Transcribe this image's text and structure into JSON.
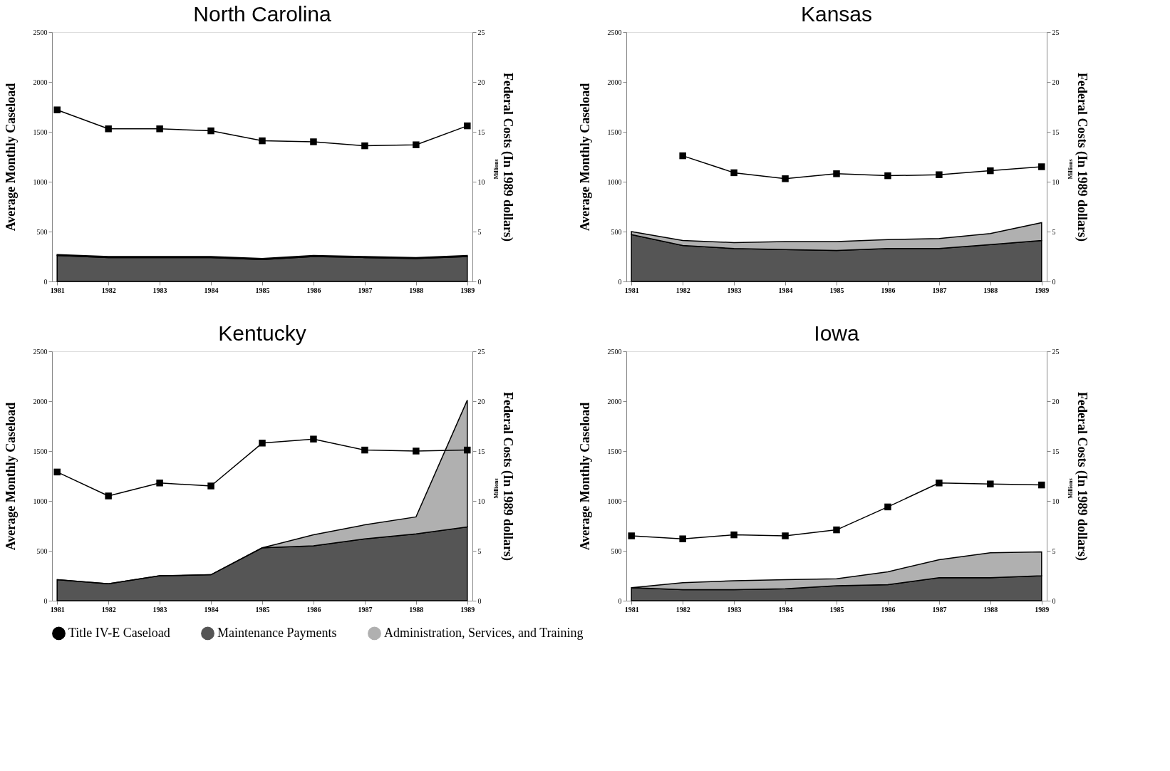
{
  "chart_data": [
    {
      "type": "line",
      "title": "North Carolina",
      "ylabel": "Average Monthly Caseload",
      "y2label": "Federal Costs (In 1989 dollars)",
      "annotations": [
        "Millions"
      ],
      "categories": [
        "1981",
        "1982",
        "1983",
        "1984",
        "1985",
        "1986",
        "1987",
        "1988",
        "1989"
      ],
      "stacked": true,
      "legend": "bottom",
      "ylim": [
        0,
        2500
      ],
      "yticks": [
        0,
        500,
        1000,
        1500,
        2000,
        2500
      ],
      "y2lim": [
        0,
        25
      ],
      "y2ticks": [
        0,
        5,
        10,
        15,
        20,
        25
      ],
      "series": [
        {
          "name": "Title IV-E Caseload",
          "marker": "square",
          "color": "#000000",
          "values": [
            1720,
            1530,
            1530,
            1510,
            1410,
            1400,
            1360,
            1370,
            1560
          ]
        },
        {
          "name": "Maintenance Payments",
          "type": "area",
          "axis": "y2",
          "color": "#555555",
          "values": [
            2.6,
            2.4,
            2.4,
            2.4,
            2.2,
            2.5,
            2.4,
            2.3,
            2.5
          ]
        },
        {
          "name": "Administration, Services, and Training",
          "type": "area",
          "axis": "y2",
          "color": "#b0b0b0",
          "values": [
            0.1,
            0.1,
            0.1,
            0.1,
            0.1,
            0.1,
            0.1,
            0.1,
            0.1
          ]
        }
      ]
    },
    {
      "type": "line",
      "title": "Kansas",
      "ylabel": "Average Monthly Caseload",
      "y2label": "Federal Costs (In 1989 dollars)",
      "annotations": [
        "Millions"
      ],
      "categories": [
        "1981",
        "1982",
        "1983",
        "1984",
        "1985",
        "1986",
        "1987",
        "1988",
        "1989"
      ],
      "stacked": true,
      "legend": "bottom",
      "ylim": [
        0,
        2500
      ],
      "yticks": [
        0,
        500,
        1000,
        1500,
        2000,
        2500
      ],
      "y2lim": [
        0,
        25
      ],
      "y2ticks": [
        0,
        5,
        10,
        15,
        20,
        25
      ],
      "series": [
        {
          "name": "Title IV-E Caseload",
          "marker": "square",
          "color": "#000000",
          "values": [
            null,
            1260,
            1090,
            1030,
            1080,
            1060,
            1070,
            1110,
            1150
          ]
        },
        {
          "name": "Maintenance Payments",
          "type": "area",
          "axis": "y2",
          "color": "#555555",
          "values": [
            4.7,
            3.6,
            3.3,
            3.2,
            3.1,
            3.3,
            3.3,
            3.7,
            4.1
          ]
        },
        {
          "name": "Administration, Services, and Training",
          "type": "area",
          "axis": "y2",
          "color": "#b0b0b0",
          "values": [
            0.3,
            0.5,
            0.6,
            0.8,
            0.9,
            0.9,
            1.0,
            1.1,
            1.8
          ]
        }
      ]
    },
    {
      "type": "line",
      "title": "Kentucky",
      "ylabel": "Average Monthly Caseload",
      "y2label": "Federal Costs (In 1989 dollars)",
      "annotations": [
        "Millions"
      ],
      "categories": [
        "1981",
        "1982",
        "1983",
        "1984",
        "1985",
        "1986",
        "1987",
        "1988",
        "1989"
      ],
      "stacked": true,
      "legend": "bottom",
      "ylim": [
        0,
        2500
      ],
      "yticks": [
        0,
        500,
        1000,
        1500,
        2000,
        2500
      ],
      "y2lim": [
        0,
        25
      ],
      "y2ticks": [
        0,
        5,
        10,
        15,
        20,
        25
      ],
      "series": [
        {
          "name": "Title IV-E Caseload",
          "marker": "square",
          "color": "#000000",
          "values": [
            1290,
            1050,
            1180,
            1150,
            1580,
            1620,
            1510,
            1500,
            1510
          ]
        },
        {
          "name": "Maintenance Payments",
          "type": "area",
          "axis": "y2",
          "color": "#555555",
          "values": [
            2.1,
            1.7,
            2.5,
            2.6,
            5.3,
            5.5,
            6.2,
            6.7,
            7.4
          ]
        },
        {
          "name": "Administration, Services, and Training",
          "type": "area",
          "axis": "y2",
          "color": "#b0b0b0",
          "values": [
            0,
            0,
            0,
            0,
            0,
            1.1,
            1.4,
            1.7,
            12.7
          ]
        }
      ]
    },
    {
      "type": "line",
      "title": "Iowa",
      "ylabel": "Average Monthly Caseload",
      "y2label": "Federal Costs (In 1989 dollars)",
      "annotations": [
        "Millions"
      ],
      "categories": [
        "1981",
        "1982",
        "1983",
        "1984",
        "1985",
        "1986",
        "1987",
        "1988",
        "1989"
      ],
      "stacked": true,
      "legend": "bottom",
      "ylim": [
        0,
        2500
      ],
      "yticks": [
        0,
        500,
        1000,
        1500,
        2000,
        2500
      ],
      "y2lim": [
        0,
        25
      ],
      "y2ticks": [
        0,
        5,
        10,
        15,
        20,
        25
      ],
      "series": [
        {
          "name": "Title IV-E Caseload",
          "marker": "square",
          "color": "#000000",
          "values": [
            650,
            620,
            660,
            650,
            710,
            940,
            1180,
            1170,
            1160
          ]
        },
        {
          "name": "Maintenance Payments",
          "type": "area",
          "axis": "y2",
          "color": "#555555",
          "values": [
            1.3,
            1.1,
            1.1,
            1.2,
            1.5,
            1.6,
            2.3,
            2.3,
            2.5
          ]
        },
        {
          "name": "Administration, Services, and Training",
          "type": "area",
          "axis": "y2",
          "color": "#b0b0b0",
          "values": [
            0,
            0.7,
            0.9,
            0.9,
            0.7,
            1.3,
            1.8,
            2.5,
            2.4
          ]
        }
      ]
    }
  ]
}
